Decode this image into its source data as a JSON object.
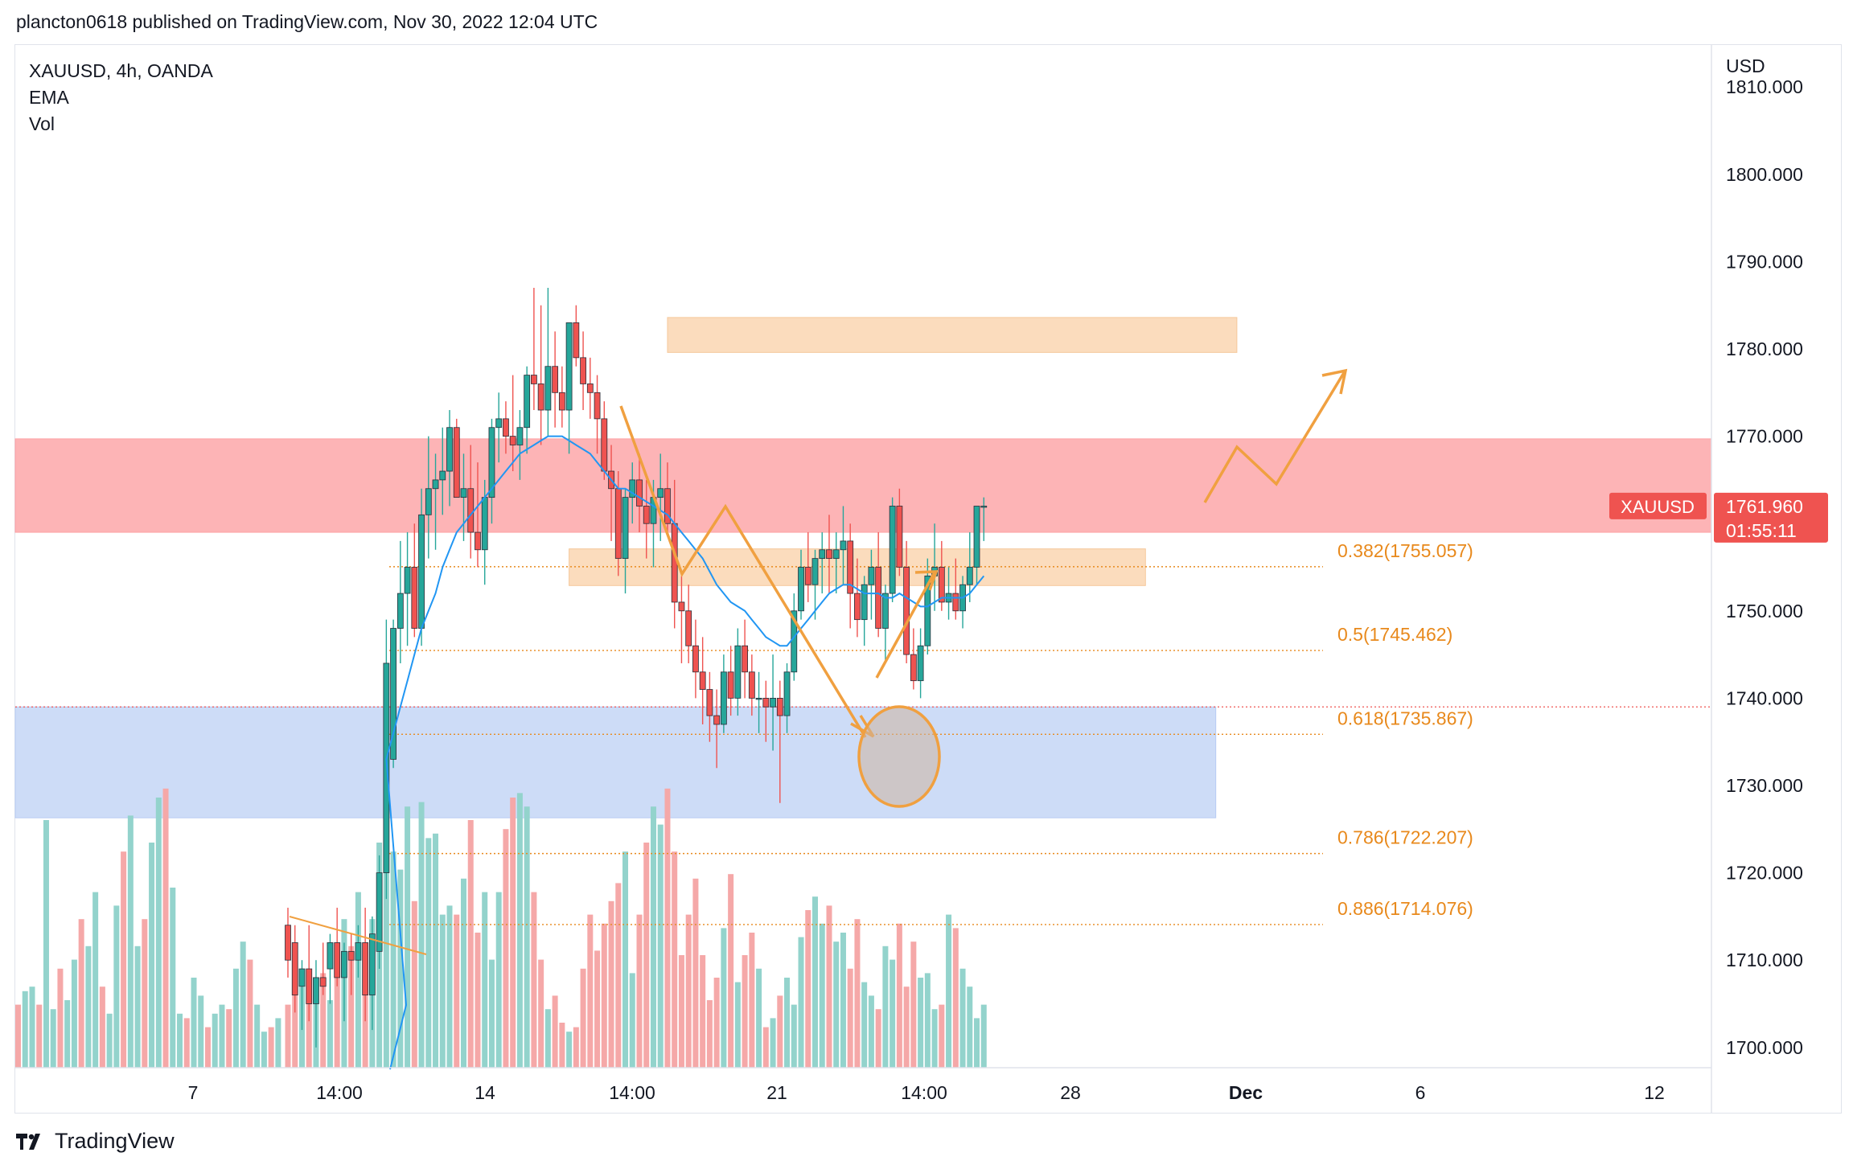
{
  "header": {
    "published": "plancton0618 published on TradingView.com, Nov 30, 2022 12:04 UTC"
  },
  "legend": {
    "symbol": "XAUUSD, 4h, OANDA",
    "ema": "EMA",
    "vol": "Vol"
  },
  "price_scale": {
    "currency": "USD"
  },
  "price_tag": {
    "symbol": "XAUUSD",
    "price": "1761.960",
    "countdown": "01:55:11"
  },
  "footer": {
    "brand": "TradingView"
  },
  "colors": {
    "up": "#26a69a",
    "down": "#ef5350",
    "ema": "#2196f3",
    "orange": "#f0a040",
    "fib": "#e8891c",
    "red_zone": "#fdb4b6",
    "blue_zone": "#cddcf7",
    "orange_zone": "#fbdcbd",
    "tag": "#ef5350"
  },
  "chart_data": {
    "type": "candlestick",
    "ylim": [
      1698,
      1812
    ],
    "y_ticks": [
      1810,
      1800,
      1790,
      1780,
      1770,
      1760,
      1750,
      1740,
      1730,
      1720,
      1710,
      1700
    ],
    "y_tick_labels": [
      "1810.000",
      "1800.000",
      "1790.000",
      "1780.000",
      "1770.000",
      "1760.000",
      "1750.000",
      "1740.000",
      "1730.000",
      "1720.000",
      "1710.000",
      "1700.000"
    ],
    "x_tick_labels": [
      "7",
      "14:00",
      "14",
      "14:00",
      "21",
      "14:00",
      "28",
      "Dec",
      "6",
      "12"
    ],
    "last_price": 1761.96,
    "fib_levels": [
      {
        "label": "0.382(1755.057)",
        "value": 1755.057
      },
      {
        "label": "0.5(1745.462)",
        "value": 1745.462
      },
      {
        "label": "0.618(1735.867)",
        "value": 1735.867
      },
      {
        "label": "0.786(1722.207)",
        "value": 1722.207
      },
      {
        "label": "0.886(1714.076)",
        "value": 1714.076
      }
    ],
    "zones": [
      {
        "kind": "red",
        "top": 1769.7,
        "bottom": 1759.0,
        "from": 0,
        "to": "end"
      },
      {
        "kind": "blue",
        "top": 1739.0,
        "bottom": 1726.3,
        "from": 0,
        "to": 132
      },
      {
        "kind": "orange",
        "top": 1783.6,
        "bottom": 1779.6,
        "from": 54,
        "to": 135
      },
      {
        "kind": "orange",
        "top": 1757.1,
        "bottom": 1752.9,
        "from": 40,
        "to": 122
      }
    ],
    "candles": [
      [
        1714,
        1716,
        1708,
        1710
      ],
      [
        1712,
        1714,
        1704,
        1706
      ],
      [
        1707,
        1710,
        1702,
        1709
      ],
      [
        1709,
        1714,
        1703,
        1705
      ],
      [
        1705,
        1710,
        1700,
        1708
      ],
      [
        1708,
        1712,
        1706,
        1707
      ],
      [
        1709,
        1713,
        1705,
        1712
      ],
      [
        1712,
        1716,
        1707,
        1708
      ],
      [
        1708,
        1712,
        1703,
        1711
      ],
      [
        1711,
        1713,
        1706,
        1710
      ],
      [
        1710,
        1714,
        1708,
        1712
      ],
      [
        1712,
        1716,
        1703,
        1706
      ],
      [
        1706,
        1715,
        1702,
        1713
      ],
      [
        1711,
        1722,
        1709,
        1720
      ],
      [
        1720,
        1749,
        1717,
        1744
      ],
      [
        1733,
        1749,
        1732,
        1748
      ],
      [
        1748,
        1758,
        1744,
        1752
      ],
      [
        1752,
        1759,
        1746,
        1755
      ],
      [
        1755,
        1760,
        1747,
        1748
      ],
      [
        1748,
        1764,
        1746,
        1761
      ],
      [
        1761,
        1770,
        1756,
        1764
      ],
      [
        1764,
        1768,
        1757,
        1765
      ],
      [
        1765,
        1771,
        1761,
        1766
      ],
      [
        1766,
        1773,
        1762,
        1771
      ],
      [
        1771,
        1772,
        1764,
        1763
      ],
      [
        1763,
        1768,
        1758,
        1764
      ],
      [
        1764,
        1769,
        1756,
        1759
      ],
      [
        1759,
        1767,
        1755,
        1757
      ],
      [
        1757,
        1765,
        1753,
        1763
      ],
      [
        1763,
        1772,
        1760,
        1771
      ],
      [
        1771,
        1775,
        1767,
        1772
      ],
      [
        1772,
        1774,
        1768,
        1770
      ],
      [
        1770,
        1777,
        1766,
        1769
      ],
      [
        1769,
        1773,
        1765,
        1771
      ],
      [
        1771,
        1778,
        1768,
        1777
      ],
      [
        1777,
        1787,
        1773,
        1776
      ],
      [
        1776,
        1785,
        1769,
        1773
      ],
      [
        1773,
        1787,
        1770,
        1778
      ],
      [
        1778,
        1782,
        1771,
        1775
      ],
      [
        1775,
        1778,
        1771,
        1773
      ],
      [
        1773,
        1782,
        1768,
        1783
      ],
      [
        1783,
        1785,
        1778,
        1779
      ],
      [
        1779,
        1782,
        1773,
        1776
      ],
      [
        1776,
        1779,
        1772,
        1775
      ],
      [
        1775,
        1777,
        1768,
        1772
      ],
      [
        1772,
        1774,
        1765,
        1766
      ],
      [
        1766,
        1769,
        1758,
        1764
      ],
      [
        1764,
        1766,
        1754,
        1756
      ],
      [
        1756,
        1764,
        1752,
        1763
      ],
      [
        1763,
        1767,
        1760,
        1765
      ],
      [
        1765,
        1768,
        1759,
        1762
      ],
      [
        1762,
        1765,
        1756,
        1760
      ],
      [
        1760,
        1765,
        1755,
        1763
      ],
      [
        1763,
        1768,
        1758,
        1764
      ],
      [
        1764,
        1767,
        1759,
        1760
      ],
      [
        1760,
        1765,
        1748,
        1751
      ],
      [
        1751,
        1754,
        1744,
        1750
      ],
      [
        1750,
        1753,
        1744,
        1746
      ],
      [
        1746,
        1749,
        1740,
        1743
      ],
      [
        1743,
        1747,
        1737,
        1741
      ],
      [
        1741,
        1743,
        1735,
        1738
      ],
      [
        1738,
        1741,
        1732,
        1737
      ],
      [
        1737,
        1745,
        1736,
        1743
      ],
      [
        1743,
        1746,
        1738,
        1740
      ],
      [
        1740,
        1748,
        1738,
        1746
      ],
      [
        1746,
        1749,
        1740,
        1743
      ],
      [
        1743,
        1745,
        1738,
        1740
      ],
      [
        1740,
        1743,
        1736,
        1740
      ],
      [
        1740,
        1742,
        1735,
        1739
      ],
      [
        1739,
        1745,
        1734,
        1740
      ],
      [
        1740,
        1742,
        1728,
        1738
      ],
      [
        1738,
        1744,
        1736,
        1743
      ],
      [
        1743,
        1752,
        1742,
        1750
      ],
      [
        1750,
        1757,
        1749,
        1755
      ],
      [
        1755,
        1759,
        1751,
        1753
      ],
      [
        1753,
        1757,
        1749,
        1756
      ],
      [
        1756,
        1759,
        1752,
        1757
      ],
      [
        1757,
        1761,
        1752,
        1756
      ],
      [
        1756,
        1759,
        1752,
        1757
      ],
      [
        1757,
        1762,
        1753,
        1758
      ],
      [
        1758,
        1760,
        1748,
        1752
      ],
      [
        1752,
        1756,
        1747,
        1749
      ],
      [
        1749,
        1754,
        1746,
        1753
      ],
      [
        1753,
        1757,
        1749,
        1755
      ],
      [
        1755,
        1759,
        1747,
        1748
      ],
      [
        1748,
        1753,
        1744,
        1752
      ],
      [
        1752,
        1763,
        1751,
        1762
      ],
      [
        1762,
        1764,
        1754,
        1755
      ],
      [
        1755,
        1758,
        1744,
        1745
      ],
      [
        1745,
        1748,
        1741,
        1742
      ],
      [
        1742,
        1748,
        1740,
        1746
      ],
      [
        1746,
        1756,
        1745,
        1754
      ],
      [
        1754,
        1760,
        1750,
        1755
      ],
      [
        1755,
        1758,
        1750,
        1751
      ],
      [
        1751,
        1755,
        1749,
        1752
      ],
      [
        1752,
        1756,
        1749,
        1750
      ],
      [
        1750,
        1754,
        1748,
        1753
      ],
      [
        1753,
        1759,
        1751,
        1755
      ],
      [
        1755,
        1762,
        1753,
        1762
      ],
      [
        1762,
        1763,
        1758,
        1762
      ]
    ],
    "ema": [
      1710,
      1710.5,
      1711,
      1712,
      1713,
      1714,
      1716,
      1718,
      1720,
      1722,
      1724,
      1726,
      1728,
      1730,
      1733,
      1736,
      1739,
      1742,
      1745,
      1748,
      1750,
      1752,
      1755,
      1757,
      1759,
      1760,
      1761,
      1762,
      1763,
      1764,
      1765,
      1766,
      1767,
      1768,
      1768.5,
      1769,
      1769.5,
      1770,
      1770,
      1770,
      1769.5,
      1769,
      1768.5,
      1768,
      1767,
      1766,
      1765,
      1764,
      1764,
      1763.5,
      1763,
      1762.5,
      1762,
      1761.5,
      1761,
      1760,
      1759,
      1758,
      1757,
      1756,
      1754.5,
      1753,
      1752,
      1751,
      1750.5,
      1750,
      1749,
      1748,
      1747,
      1746.5,
      1746,
      1746,
      1747,
      1748,
      1749,
      1750,
      1751,
      1752,
      1752.5,
      1753,
      1753,
      1752.5,
      1752,
      1752,
      1752,
      1751.5,
      1751.5,
      1752,
      1751.5,
      1751,
      1750.5,
      1750.5,
      1751,
      1751.5,
      1751.5,
      1751.5,
      1751.5,
      1752,
      1753,
      1754
    ],
    "volumes": [
      14,
      17,
      18,
      15,
      16,
      21,
      15,
      24,
      33,
      27,
      39,
      21,
      33,
      50,
      56,
      48,
      44,
      58,
      37,
      59,
      51,
      52,
      34,
      36,
      34,
      42,
      55,
      30,
      39,
      24,
      39,
      53,
      60,
      61,
      58,
      39,
      24,
      13,
      16,
      10,
      8,
      9,
      22,
      34,
      26,
      32,
      37,
      41,
      48,
      21,
      34,
      50,
      58,
      54,
      62,
      48,
      25,
      34,
      42,
      25,
      15,
      20,
      31,
      43,
      19,
      25,
      30,
      22,
      9,
      11,
      16,
      20,
      14,
      29,
      35,
      38,
      32,
      36,
      28,
      30,
      22,
      33,
      19,
      16,
      13,
      27,
      24,
      32,
      18,
      28,
      20,
      21,
      13,
      14,
      34,
      31,
      22,
      18,
      11,
      14
    ]
  }
}
